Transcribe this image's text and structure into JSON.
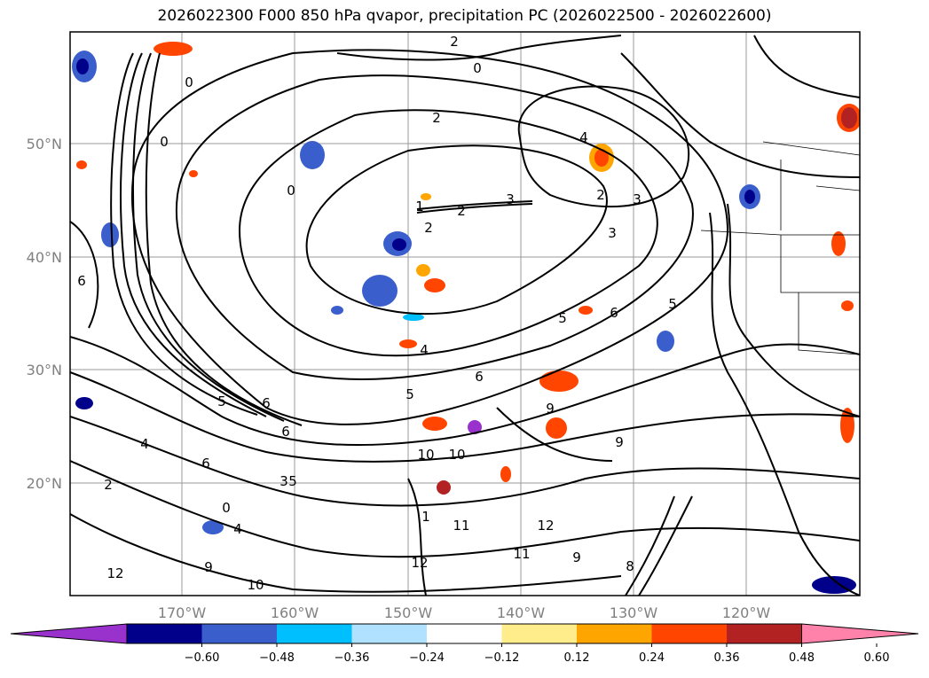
{
  "title": "2026022300 F000 850 hPa qvapor, precipitation PC (2026022500 - 2026022600)",
  "lat_labels": [
    "50°N",
    "40°N",
    "30°N",
    "20°N"
  ],
  "lon_labels": [
    "170°W",
    "160°W",
    "150°W",
    "140°W",
    "130°W",
    "120°W"
  ],
  "colorbar": {
    "ticks": [
      "−0.60",
      "−0.48",
      "−0.36",
      "−0.24",
      "−0.12",
      "0.12",
      "0.24",
      "0.36",
      "0.48",
      "0.60"
    ],
    "colors": [
      "#9932cc",
      "#00008b",
      "#3a5fcd",
      "#00bfff",
      "#b0e2ff",
      "#ffffff",
      "#ffec8b",
      "#ffa500",
      "#ff4500",
      "#b22222",
      "#ff82ab"
    ]
  },
  "contour_labels": [
    "2",
    "0",
    "0",
    "0",
    "2",
    "4",
    "2",
    "1",
    "0",
    "2",
    "2",
    "3",
    "4",
    "5",
    "6",
    "5",
    "6",
    "4",
    "5",
    "6",
    "5",
    "6",
    "6",
    "9",
    "9",
    "10",
    "11",
    "12",
    "11",
    "12",
    "10",
    "9",
    "5",
    "6",
    "4",
    "2",
    "0",
    "1",
    "8",
    "9",
    "10",
    "12",
    "3",
    "3",
    "3"
  ]
}
